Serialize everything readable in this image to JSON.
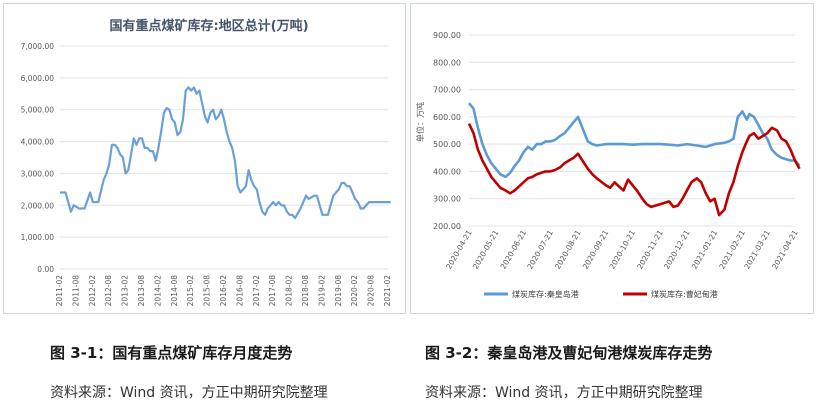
{
  "figures": [
    {
      "caption": "图 3-1：国有重点煤矿库存月度走势",
      "source": "资料来源：Wind 资讯，方正中期研究院整理"
    },
    {
      "caption": "图 3-2：秦皇岛港及曹妃甸港煤炭库存走势",
      "source": "资料来源：Wind 资讯，方正中期研究院整理"
    }
  ],
  "colors": {
    "left_line": "#6aa0d8",
    "right_series_1": "#5b9bd5",
    "right_series_2": "#c00000",
    "grid": "#e3e3e3",
    "axis_text": "#595959",
    "left_title": "#44546a"
  },
  "chart_data": [
    {
      "type": "line",
      "title": "国有重点煤矿库存:地区总计(万吨)",
      "y_tick_labels": [
        "0.00",
        "1,000.00",
        "2,000.00",
        "3,000.00",
        "4,000.00",
        "5,000.00",
        "6,000.00",
        "7,000.00"
      ],
      "x_tick_labels": [
        "2011-02",
        "2011-08",
        "2012-02",
        "2012-08",
        "2013-02",
        "2013-08",
        "2014-02",
        "2014-08",
        "2015-02",
        "2015-08",
        "2016-02",
        "2016-08",
        "2017-02",
        "2017-08",
        "2018-02",
        "2018-08",
        "2019-02",
        "2019-08",
        "2020-02",
        "2020-08",
        "2021-02"
      ],
      "ylim": [
        0,
        7000
      ],
      "grid": true,
      "x": [
        "2011-02",
        "2011-04",
        "2011-06",
        "2011-07",
        "2011-09",
        "2011-11",
        "2012-01",
        "2012-02",
        "2012-04",
        "2012-06",
        "2012-07",
        "2012-08",
        "2012-09",
        "2012-10",
        "2012-11",
        "2012-12",
        "2013-01",
        "2013-02",
        "2013-03",
        "2013-04",
        "2013-05",
        "2013-06",
        "2013-07",
        "2013-08",
        "2013-09",
        "2013-10",
        "2013-11",
        "2013-12",
        "2014-01",
        "2014-02",
        "2014-03",
        "2014-04",
        "2014-05",
        "2014-06",
        "2014-07",
        "2014-08",
        "2014-09",
        "2014-10",
        "2014-11",
        "2014-12",
        "2015-01",
        "2015-02",
        "2015-03",
        "2015-04",
        "2015-05",
        "2015-06",
        "2015-07",
        "2015-08",
        "2015-09",
        "2015-10",
        "2015-11",
        "2015-12",
        "2016-01",
        "2016-02",
        "2016-03",
        "2016-04",
        "2016-05",
        "2016-06",
        "2016-07",
        "2016-08",
        "2016-09",
        "2016-10",
        "2016-11",
        "2016-12",
        "2017-01",
        "2017-02",
        "2017-03",
        "2017-04",
        "2017-05",
        "2017-06",
        "2017-07",
        "2017-08",
        "2017-09",
        "2017-10",
        "2017-11",
        "2017-12",
        "2018-01",
        "2018-02",
        "2018-03",
        "2018-04",
        "2018-06",
        "2018-07",
        "2018-08",
        "2018-09",
        "2018-11",
        "2018-12",
        "2019-02",
        "2019-04",
        "2019-06",
        "2019-08",
        "2019-09",
        "2019-10",
        "2019-11",
        "2019-12",
        "2020-01",
        "2020-02",
        "2020-03",
        "2020-04",
        "2020-05",
        "2020-06",
        "2020-07",
        "2020-08",
        "2020-09",
        "2020-10",
        "2020-11",
        "2020-12",
        "2021-01",
        "2021-02",
        "2021-03"
      ],
      "series": [
        {
          "values": [
            2400,
            2400,
            1800,
            2000,
            1900,
            1900,
            2400,
            2100,
            2100,
            2800,
            3000,
            3300,
            3900,
            3900,
            3800,
            3600,
            3500,
            3000,
            3100,
            3600,
            4100,
            3900,
            4100,
            4100,
            3800,
            3800,
            3700,
            3700,
            3400,
            3800,
            4300,
            4900,
            5050,
            5000,
            4700,
            4600,
            4200,
            4300,
            4700,
            5600,
            5700,
            5600,
            5700,
            5500,
            5600,
            5200,
            4800,
            4600,
            4900,
            5000,
            4700,
            4800,
            5000,
            4700,
            4300,
            4000,
            3800,
            3400,
            2600,
            2400,
            2500,
            2600,
            3100,
            2800,
            2600,
            2500,
            2100,
            1800,
            1700,
            1900,
            2000,
            2100,
            2000,
            2100,
            2000,
            2000,
            1800,
            1700,
            1700,
            1600,
            1900,
            2100,
            2300,
            2200,
            2300,
            2300,
            1700,
            1700,
            2300,
            2500,
            2700,
            2700,
            2600,
            2600,
            2400,
            2200,
            2100,
            1900,
            1900,
            2000,
            2100,
            2100,
            2100,
            2100,
            2100,
            2100,
            2100,
            2100,
            2100
          ]
        }
      ]
    },
    {
      "type": "line",
      "y_tick_labels": [
        "200.00",
        "300.00",
        "400.00",
        "500.00",
        "600.00",
        "700.00",
        "800.00",
        "900.00"
      ],
      "ylim": [
        200,
        900
      ],
      "ylabel": "单位：万吨",
      "grid": true,
      "x_tick_labels": [
        "2020-04-21",
        "2020-05-21",
        "2020-06-21",
        "2020-07-21",
        "2020-08-21",
        "2020-09-21",
        "2020-10-21",
        "2020-11-21",
        "2020-12-21",
        "2021-01-21",
        "2021-02-21",
        "2021-03-21",
        "2021-04-21"
      ],
      "legend": "bottom",
      "series": [
        {
          "name": "煤炭库存:秦皇岛港",
          "x": [
            "2020-04-21",
            "2020-04-26",
            "2020-05-01",
            "2020-05-06",
            "2020-05-11",
            "2020-05-16",
            "2020-05-21",
            "2020-05-26",
            "2020-06-01",
            "2020-06-06",
            "2020-06-11",
            "2020-06-16",
            "2020-06-21",
            "2020-06-26",
            "2020-07-01",
            "2020-07-06",
            "2020-07-11",
            "2020-07-16",
            "2020-07-21",
            "2020-07-26",
            "2020-08-01",
            "2020-08-06",
            "2020-08-11",
            "2020-08-16",
            "2020-08-21",
            "2020-08-26",
            "2020-09-01",
            "2020-09-06",
            "2020-09-11",
            "2020-09-21",
            "2020-10-01",
            "2020-10-11",
            "2020-10-21",
            "2020-11-01",
            "2020-11-11",
            "2020-11-21",
            "2020-12-01",
            "2020-12-11",
            "2020-12-21",
            "2021-01-01",
            "2021-01-11",
            "2021-01-21",
            "2021-02-01",
            "2021-02-06",
            "2021-02-11",
            "2021-02-16",
            "2021-02-21",
            "2021-02-26",
            "2021-03-01",
            "2021-03-06",
            "2021-03-11",
            "2021-03-16",
            "2021-03-21",
            "2021-03-26",
            "2021-04-01",
            "2021-04-06",
            "2021-04-11",
            "2021-04-16",
            "2021-04-21",
            "2021-04-26"
          ],
          "values": [
            650,
            630,
            560,
            500,
            460,
            430,
            410,
            390,
            380,
            395,
            420,
            440,
            470,
            490,
            480,
            500,
            500,
            510,
            510,
            515,
            530,
            540,
            560,
            580,
            600,
            560,
            510,
            500,
            495,
            500,
            500,
            500,
            498,
            500,
            500,
            500,
            498,
            495,
            500,
            495,
            490,
            500,
            505,
            510,
            520,
            600,
            620,
            590,
            610,
            600,
            570,
            540,
            520,
            480,
            460,
            450,
            445,
            440,
            440,
            420
          ]
        },
        {
          "name": "煤炭库存:曹妃甸港",
          "x": [
            "2020-04-21",
            "2020-04-26",
            "2020-05-01",
            "2020-05-06",
            "2020-05-11",
            "2020-05-16",
            "2020-05-21",
            "2020-05-26",
            "2020-06-01",
            "2020-06-06",
            "2020-06-11",
            "2020-06-16",
            "2020-06-21",
            "2020-06-26",
            "2020-07-01",
            "2020-07-06",
            "2020-07-11",
            "2020-07-16",
            "2020-07-21",
            "2020-07-26",
            "2020-08-01",
            "2020-08-06",
            "2020-08-11",
            "2020-08-16",
            "2020-08-21",
            "2020-08-26",
            "2020-09-01",
            "2020-09-06",
            "2020-09-11",
            "2020-09-21",
            "2020-09-26",
            "2020-10-01",
            "2020-10-06",
            "2020-10-11",
            "2020-10-16",
            "2020-10-21",
            "2020-10-26",
            "2020-11-01",
            "2020-11-06",
            "2020-11-11",
            "2020-11-21",
            "2020-12-01",
            "2020-12-06",
            "2020-12-11",
            "2020-12-16",
            "2020-12-21",
            "2020-12-26",
            "2021-01-01",
            "2021-01-06",
            "2021-01-11",
            "2021-01-16",
            "2021-01-21",
            "2021-01-26",
            "2021-02-01",
            "2021-02-06",
            "2021-02-11",
            "2021-02-16",
            "2021-02-21",
            "2021-02-26",
            "2021-03-01",
            "2021-03-06",
            "2021-03-11",
            "2021-03-16",
            "2021-03-21",
            "2021-03-26",
            "2021-04-01",
            "2021-04-06",
            "2021-04-11",
            "2021-04-16",
            "2021-04-21",
            "2021-04-26"
          ],
          "values": [
            575,
            540,
            480,
            440,
            410,
            380,
            360,
            340,
            330,
            320,
            330,
            345,
            360,
            375,
            380,
            390,
            395,
            400,
            400,
            405,
            415,
            430,
            440,
            450,
            465,
            440,
            410,
            390,
            375,
            350,
            340,
            360,
            345,
            330,
            370,
            350,
            330,
            300,
            280,
            270,
            280,
            290,
            270,
            275,
            300,
            330,
            360,
            375,
            360,
            320,
            290,
            300,
            240,
            260,
            320,
            360,
            420,
            470,
            510,
            530,
            540,
            520,
            530,
            540,
            560,
            550,
            520,
            510,
            480,
            440,
            410
          ]
        }
      ]
    }
  ]
}
